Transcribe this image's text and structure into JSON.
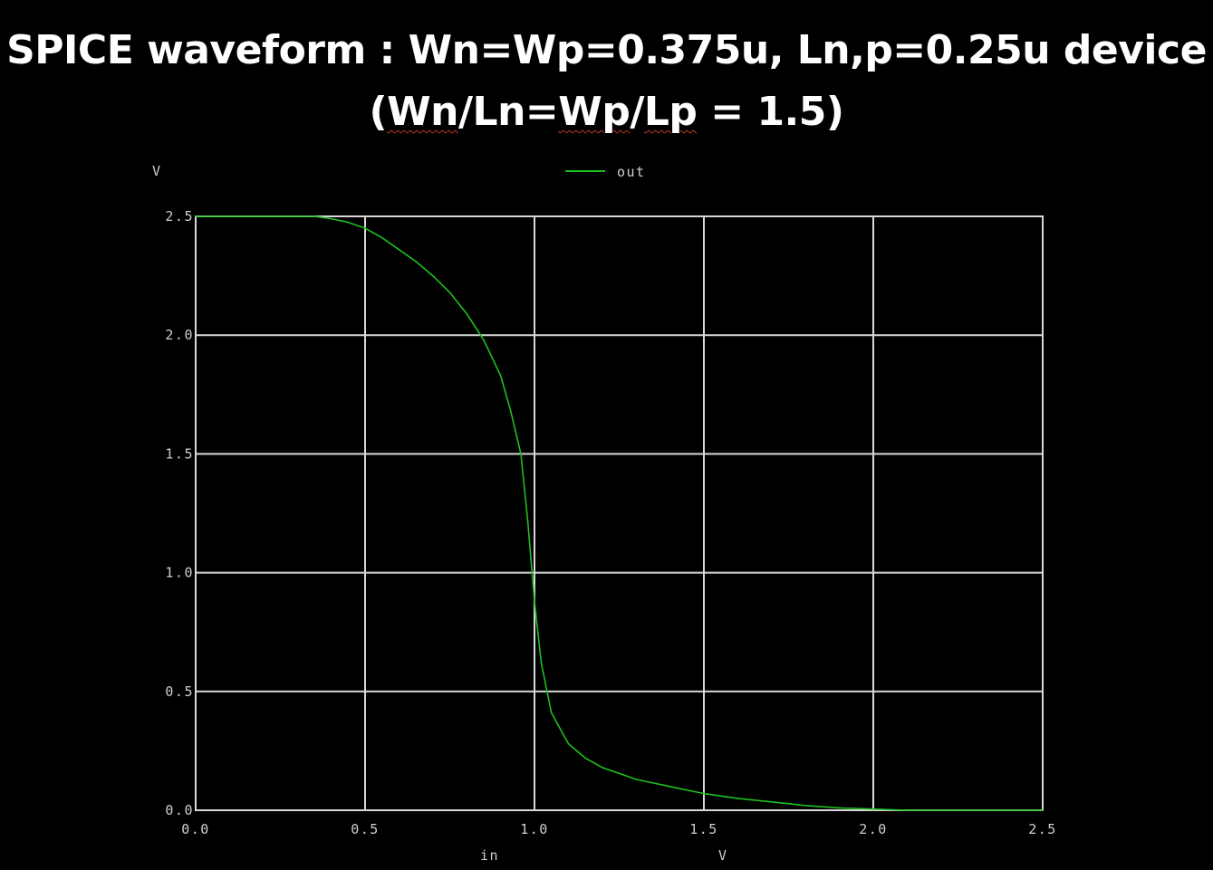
{
  "slide": {
    "title_line1": "SPICE waveform : Wn=Wp=0.375u, Ln,p=0.25u device",
    "title_line2_open": "(",
    "title_line2_a": "Wn",
    "title_line2_b": "/Ln=",
    "title_line2_c": "Wp",
    "title_line2_d": "/",
    "title_line2_e": "Lp",
    "title_line2_f": " = 1.5)"
  },
  "colors": {
    "background": "#000000",
    "grid": "#d8d8d8",
    "trace": "#1fbf1f",
    "text": "#cfcfcf"
  },
  "chart_data": {
    "type": "line",
    "title": "",
    "xlabel": "in",
    "x_unit": "V",
    "ylabel": "",
    "y_unit": "V",
    "xlim": [
      0.0,
      2.5
    ],
    "ylim": [
      0.0,
      2.5
    ],
    "x_ticks": [
      "0.0",
      "0.5",
      "1.0",
      "1.5",
      "2.0",
      "2.5"
    ],
    "y_ticks": [
      "0.0",
      "0.5",
      "1.0",
      "1.5",
      "2.0",
      "2.5"
    ],
    "grid": true,
    "legend_position": "top-center",
    "series": [
      {
        "name": "out",
        "color": "#1fbf1f",
        "x": [
          0.0,
          0.1,
          0.2,
          0.3,
          0.35,
          0.4,
          0.45,
          0.5,
          0.55,
          0.6,
          0.65,
          0.7,
          0.75,
          0.8,
          0.85,
          0.9,
          0.93,
          0.96,
          0.98,
          1.0,
          1.02,
          1.05,
          1.1,
          1.15,
          1.2,
          1.3,
          1.4,
          1.5,
          1.6,
          1.7,
          1.8,
          1.9,
          2.0,
          2.1,
          2.2,
          2.3,
          2.4,
          2.5
        ],
        "y": [
          2.5,
          2.5,
          2.5,
          2.5,
          2.5,
          2.49,
          2.475,
          2.45,
          2.41,
          2.36,
          2.31,
          2.25,
          2.18,
          2.09,
          1.98,
          1.83,
          1.68,
          1.5,
          1.22,
          0.88,
          0.62,
          0.41,
          0.28,
          0.22,
          0.18,
          0.13,
          0.1,
          0.07,
          0.05,
          0.035,
          0.02,
          0.01,
          0.005,
          0.0,
          0.0,
          0.0,
          0.0,
          0.0
        ]
      }
    ]
  }
}
